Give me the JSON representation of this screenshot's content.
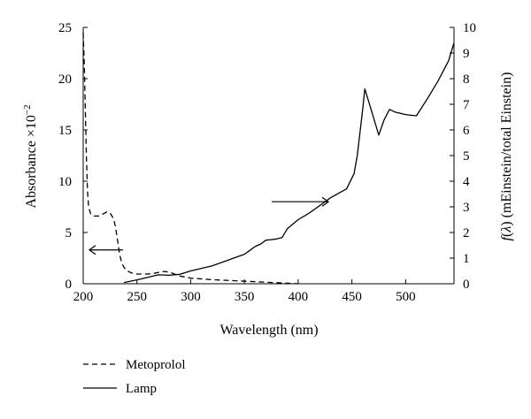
{
  "chart_data": {
    "type": "line",
    "title": "",
    "xlabel": "Wavelength (nm)",
    "ylabel_left": {
      "text": "Absorbance ×10",
      "exponent": "−2"
    },
    "ylabel_right": {
      "func": "f",
      "arg": "λ",
      "unit": "(mEinstein/total Einstein)"
    },
    "xlim": [
      200,
      545
    ],
    "ylim_left": [
      0,
      25
    ],
    "ylim_right": [
      0,
      10
    ],
    "x_ticks": [
      "200",
      "250",
      "300",
      "350",
      "400",
      "450",
      "500"
    ],
    "y_left_ticks": [
      "0",
      "5",
      "10",
      "15",
      "20",
      "25"
    ],
    "y_right_ticks": [
      "0",
      "1",
      "2",
      "3",
      "4",
      "5",
      "6",
      "7",
      "8",
      "9",
      "10"
    ],
    "grid": false,
    "legend_position": "below-left",
    "series": [
      {
        "name": "Metoprolol",
        "axis": "left",
        "style": "dashed",
        "x": [
          200,
          201,
          202,
          203,
          204,
          205,
          207,
          210,
          215,
          220,
          222,
          225,
          228,
          230,
          232,
          234,
          236,
          238,
          240,
          245,
          250,
          260,
          265,
          270,
          275,
          280,
          285,
          290,
          300,
          320,
          340,
          360,
          380,
          400
        ],
        "y": [
          24.5,
          21.5,
          17.0,
          12.5,
          9.0,
          7.5,
          6.8,
          6.6,
          6.6,
          6.9,
          7.0,
          6.9,
          6.4,
          5.6,
          4.2,
          2.8,
          2.0,
          1.6,
          1.3,
          1.05,
          0.95,
          0.95,
          1.0,
          1.1,
          1.2,
          1.15,
          0.95,
          0.75,
          0.55,
          0.4,
          0.3,
          0.2,
          0.1,
          0.0
        ]
      },
      {
        "name": "Lamp",
        "axis": "right",
        "style": "solid",
        "x": [
          238,
          250,
          260,
          270,
          280,
          290,
          300,
          310,
          320,
          330,
          340,
          350,
          355,
          360,
          365,
          370,
          375,
          380,
          385,
          390,
          400,
          410,
          420,
          430,
          445,
          452,
          455,
          460,
          462,
          465,
          470,
          475,
          480,
          485,
          490,
          500,
          510,
          520,
          530,
          540,
          545
        ],
        "y": [
          0.05,
          0.15,
          0.25,
          0.35,
          0.33,
          0.37,
          0.5,
          0.6,
          0.7,
          0.85,
          1.0,
          1.15,
          1.3,
          1.45,
          1.55,
          1.7,
          1.72,
          1.75,
          1.8,
          2.15,
          2.5,
          2.75,
          3.05,
          3.35,
          3.7,
          4.3,
          5.0,
          6.8,
          7.6,
          7.2,
          6.5,
          5.8,
          6.4,
          6.8,
          6.7,
          6.6,
          6.55,
          7.2,
          7.9,
          8.7,
          9.4
        ]
      }
    ],
    "arrows": [
      {
        "points_to": "left",
        "at_x": 237,
        "at_y_left": 3.3
      },
      {
        "points_to": "right",
        "at_x": 424,
        "at_y_right": 3.2
      }
    ]
  }
}
